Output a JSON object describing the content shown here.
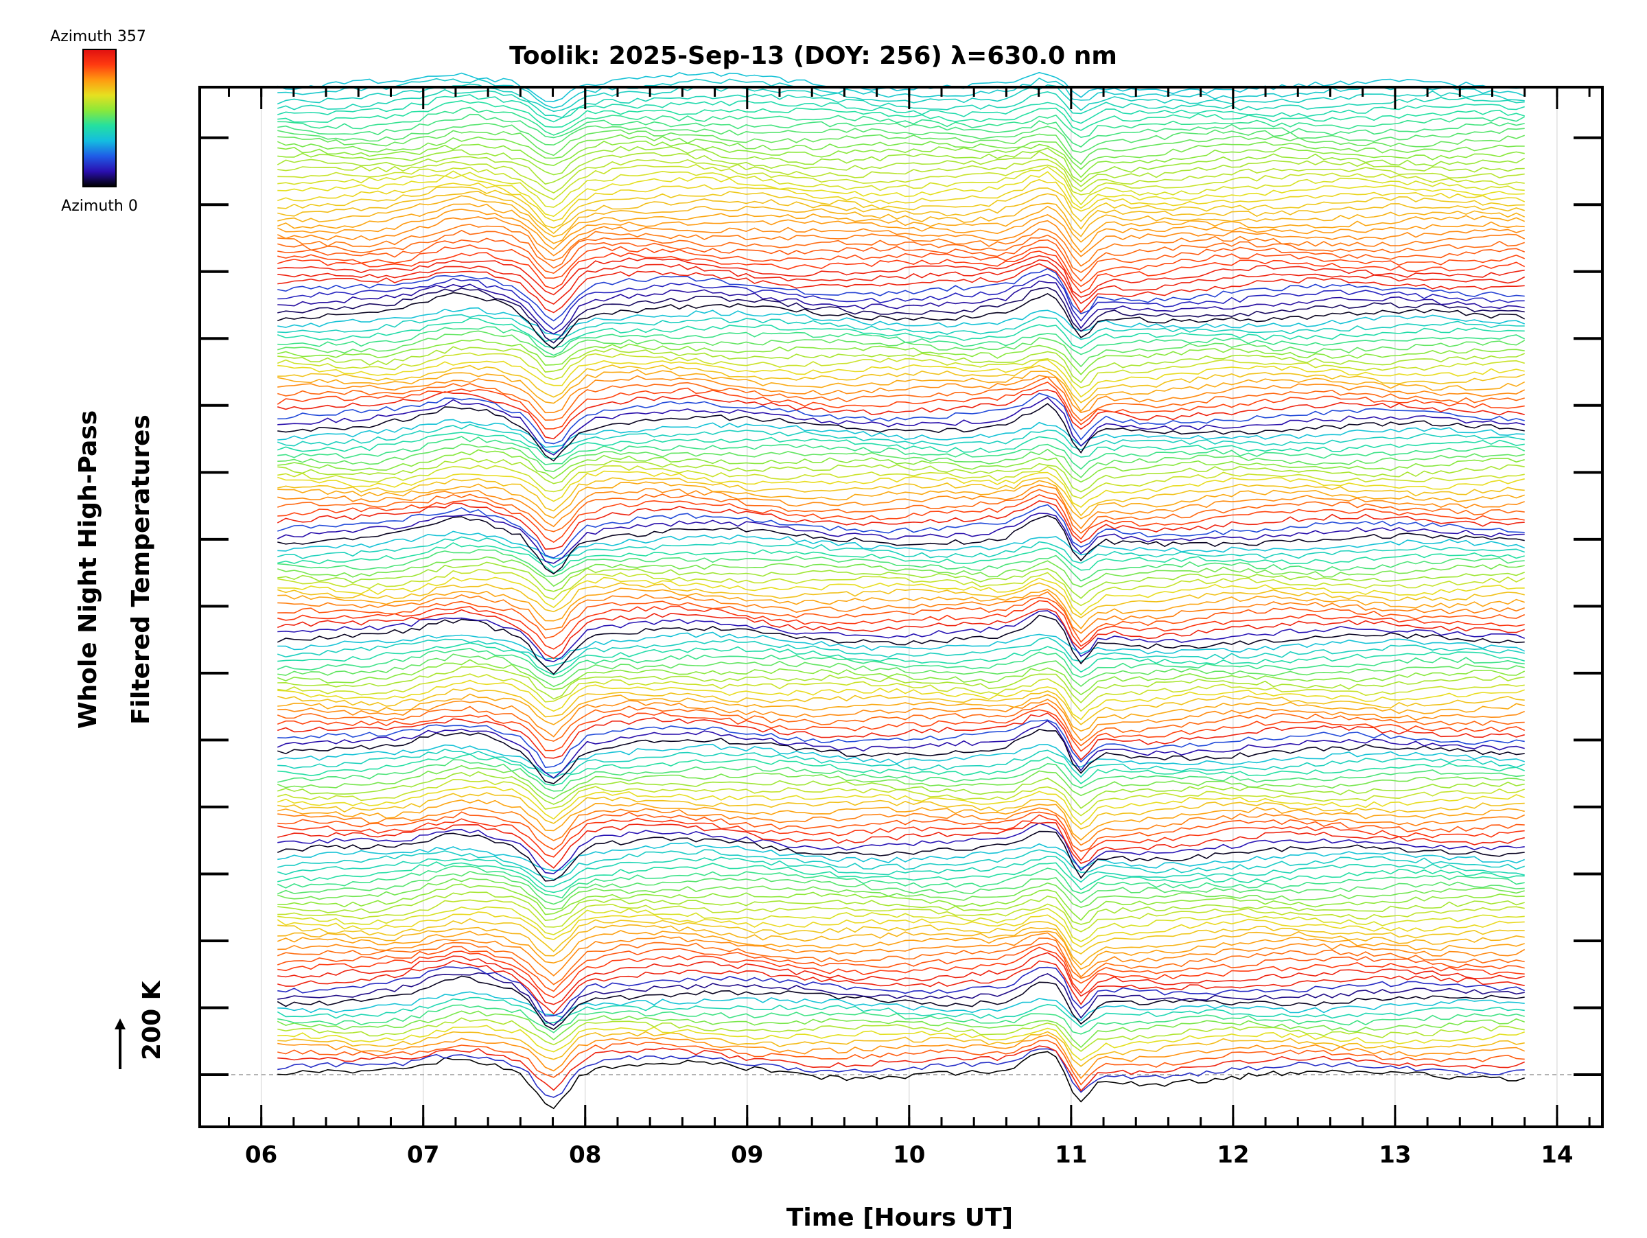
{
  "chart_data": {
    "type": "line",
    "title": "Toolik: 2025-Sep-13 (DOY: 256) λ=630.0 nm",
    "xlabel": "Time [Hours UT]",
    "ylabel_line1": "Whole Night High-Pass",
    "ylabel_line2": "Filtered Temperatures",
    "xlim": [
      5.62,
      14.28
    ],
    "x_ticks": [
      6,
      7,
      8,
      9,
      10,
      11,
      12,
      13,
      14
    ],
    "x_tick_labels": [
      "06",
      "07",
      "08",
      "09",
      "10",
      "11",
      "12",
      "13",
      "14"
    ],
    "x_minor_step": 0.2,
    "y_offset_step_K": 200,
    "y_reference_label": "200 K",
    "y_baseline_K": 0,
    "y_major_ticks_K": [
      0,
      200,
      400,
      600,
      800,
      1000,
      1200,
      1400,
      1600,
      1800,
      2000,
      2200,
      2400,
      2600,
      2800
    ],
    "trace_count": 160,
    "trace_offset_K": 18.6,
    "time_range": [
      6.1,
      13.8
    ],
    "colorbar": {
      "min_label": "Azimuth 0",
      "max_label": "Azimuth 357",
      "colormap": "rainbow",
      "stops": [
        "#000000",
        "#2a0fb0",
        "#1f5ce6",
        "#14bde0",
        "#24e0a0",
        "#8ae83a",
        "#e6e020",
        "#ff9a10",
        "#ff3a10",
        "#e01010"
      ]
    },
    "grid": true,
    "baseline_dashed": true,
    "features": [
      {
        "time": 7.8,
        "description": "dip"
      },
      {
        "time": 10.85,
        "description": "peak"
      },
      {
        "time": 11.0,
        "description": "sharp drop"
      }
    ]
  }
}
